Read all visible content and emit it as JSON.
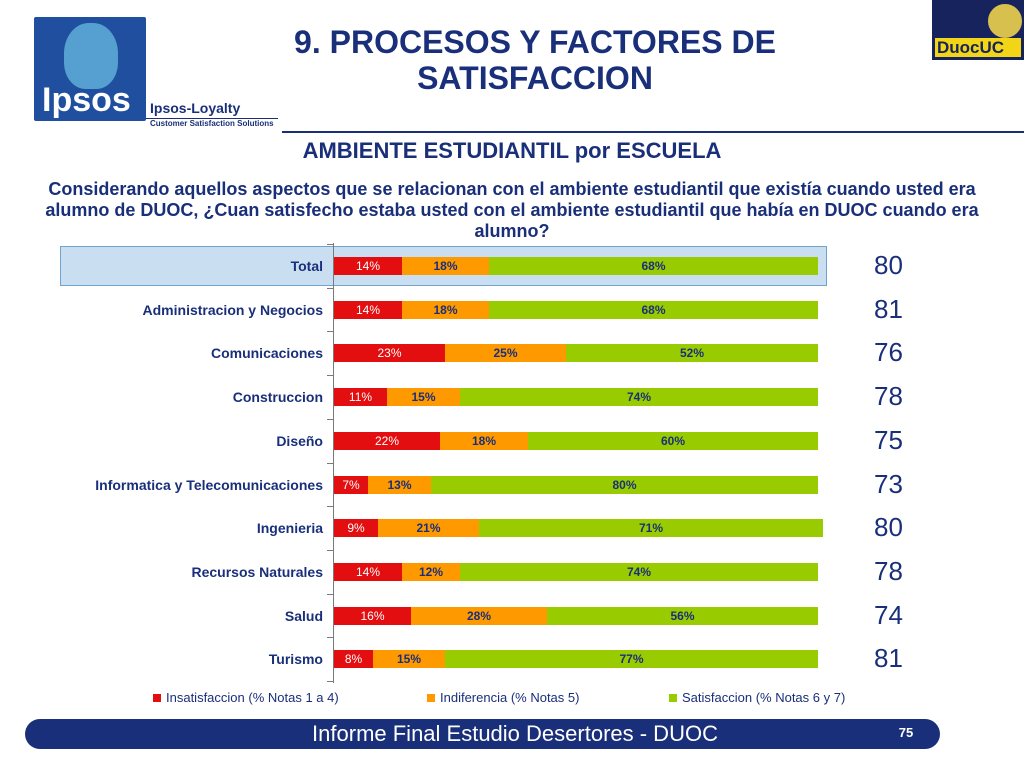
{
  "header": {
    "title": "9. PROCESOS Y FACTORES DE SATISFACCION",
    "logo_ipsos": "Ipsos",
    "loyalty_title": "Ipsos-Loyalty",
    "loyalty_sub": "Customer Satisfaction Solutions",
    "logo_duoc": "DuocUC"
  },
  "subtitle": "AMBIENTE ESTUDIANTIL por ESCUELA",
  "question": "Considerando aquellos aspectos que se relacionan con el ambiente estudiantil que existía cuando usted era alumno de DUOC, ¿Cuan satisfecho estaba usted con el ambiente estudiantil que había en DUOC cuando era alumno?",
  "colors": {
    "insatisfaccion": "#e20e10",
    "indiferencia": "#ff9900",
    "satisfaccion": "#99cc00",
    "text": "#1a2f7a",
    "highlight": "#c9dff1"
  },
  "chart_data": {
    "type": "bar",
    "orientation": "horizontal",
    "stacked": true,
    "percent_stacked": true,
    "categories": [
      "Total",
      "Administracion y Negocios",
      "Comunicaciones",
      "Construccion",
      "Diseño",
      "Informatica y Telecomunicaciones",
      "Ingenieria",
      "Recursos Naturales",
      "Salud",
      "Turismo"
    ],
    "series": [
      {
        "name": "Insatisfaccion (% Notas 1 a 4)",
        "values": [
          14,
          14,
          23,
          11,
          22,
          7,
          9,
          14,
          16,
          8
        ]
      },
      {
        "name": "Indiferencia (% Notas 5)",
        "values": [
          18,
          18,
          25,
          15,
          18,
          13,
          21,
          12,
          28,
          15
        ]
      },
      {
        "name": "Satisfaccion (% Notas 6 y 7)",
        "values": [
          68,
          68,
          52,
          74,
          60,
          80,
          71,
          74,
          56,
          77
        ]
      }
    ],
    "scores": [
      80,
      81,
      76,
      78,
      75,
      73,
      80,
      78,
      74,
      81
    ],
    "highlighted_category": "Total",
    "legend_position": "bottom"
  },
  "footer": {
    "text": "Informe Final Estudio Desertores - DUOC",
    "page": "75"
  }
}
